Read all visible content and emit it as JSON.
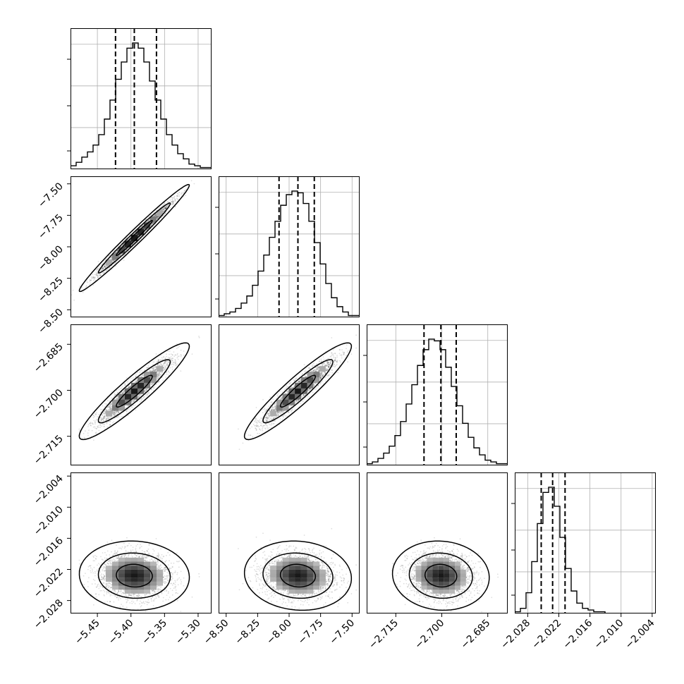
{
  "chart_data": {
    "type": "corner",
    "title": "",
    "parameters": [
      {
        "index": 0,
        "range": [
          -5.49,
          -5.28
        ],
        "ticks": [
          -5.45,
          -5.4,
          -5.35,
          -5.3
        ],
        "tick_labels": [
          "−5.45",
          "−5.40",
          "−5.35",
          "−5.30"
        ],
        "quantiles": [
          -5.423,
          -5.395,
          -5.362
        ],
        "median": -5.395,
        "sigma": 0.027
      },
      {
        "index": 1,
        "range": [
          -8.56,
          -7.44
        ],
        "ticks": [
          -8.5,
          -8.25,
          -8.0,
          -7.75,
          -7.5
        ],
        "tick_labels": [
          "−8.50",
          "−8.25",
          "−8.00",
          "−7.75",
          "−7.50"
        ],
        "quantiles": [
          -8.08,
          -7.93,
          -7.8
        ],
        "median": -7.93,
        "sigma": 0.14
      },
      {
        "index": 2,
        "range": [
          -2.7245,
          -2.6785
        ],
        "ticks": [
          -2.715,
          -2.7,
          -2.685
        ],
        "tick_labels": [
          "−2.715",
          "−2.700",
          "−2.685"
        ],
        "quantiles": [
          -2.7058,
          -2.7003,
          -2.6953
        ],
        "median": -2.7003,
        "sigma": 0.0052
      },
      {
        "index": 3,
        "range": [
          -2.0305,
          -2.0033
        ],
        "ticks": [
          -2.028,
          -2.022,
          -2.016,
          -2.01,
          -2.004
        ],
        "tick_labels": [
          "−2.028",
          "−2.022",
          "−2.016",
          "−2.010",
          "−2.004"
        ],
        "quantiles": [
          -2.0254,
          -2.0232,
          -2.0208
        ],
        "median": -2.0232,
        "sigma": 0.0022
      }
    ],
    "correlations": [
      {
        "pair": [
          1,
          0
        ],
        "rho": 0.985
      },
      {
        "pair": [
          2,
          0
        ],
        "rho": 0.93
      },
      {
        "pair": [
          2,
          1
        ],
        "rho": 0.93
      },
      {
        "pair": [
          3,
          0
        ],
        "rho": -0.05
      },
      {
        "pair": [
          3,
          1
        ],
        "rho": -0.08
      },
      {
        "pair": [
          3,
          2
        ],
        "rho": -0.06
      }
    ],
    "histograms": [
      {
        "param": 0,
        "counts": [
          2,
          4,
          7,
          10,
          14,
          20,
          29,
          40,
          52,
          62,
          70,
          73,
          70,
          62,
          51,
          40,
          29,
          20,
          14,
          9,
          6,
          3,
          2,
          1,
          1
        ]
      },
      {
        "param": 1,
        "counts": [
          1,
          2,
          3,
          5,
          8,
          12,
          18,
          26,
          35,
          45,
          54,
          63,
          69,
          71,
          70,
          64,
          54,
          42,
          30,
          19,
          11,
          6,
          3,
          1,
          1
        ]
      },
      {
        "param": 2,
        "counts": [
          1,
          2,
          4,
          7,
          11,
          17,
          25,
          35,
          46,
          57,
          66,
          72,
          71,
          66,
          56,
          45,
          34,
          24,
          16,
          10,
          6,
          3,
          2,
          1,
          1
        ]
      },
      {
        "param": 3,
        "counts": [
          1,
          3,
          12,
          30,
          52,
          70,
          73,
          62,
          44,
          26,
          13,
          6,
          3,
          2,
          1,
          1,
          0,
          0,
          0,
          0,
          0,
          0,
          0,
          0,
          0
        ]
      }
    ],
    "contour_levels": [
      0.39,
      0.86,
      0.99
    ],
    "grid": true
  }
}
